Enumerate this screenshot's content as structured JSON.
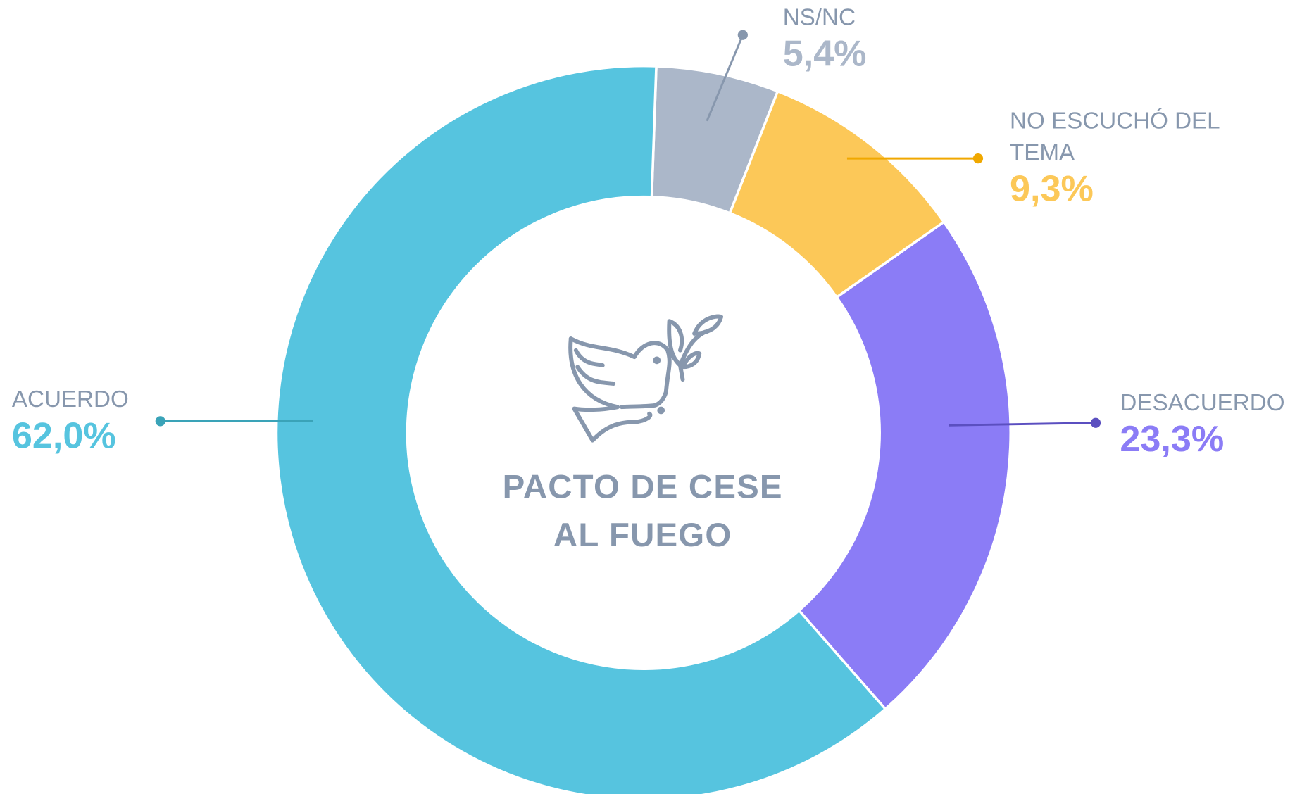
{
  "chart_data": {
    "type": "donut",
    "title": "PACTO DE CESE AL FUEGO",
    "categories": [
      "NS/NC",
      "NO ESCUCHÓ DEL TEMA",
      "DESACUERDO",
      "ACUERDO"
    ],
    "values": [
      5.4,
      9.3,
      23.3,
      62.0
    ],
    "value_labels": [
      "5,4%",
      "9,3%",
      "23,3%",
      "62,0%"
    ],
    "colors": [
      "#abb7c9",
      "#fcc858",
      "#8b7cf6",
      "#56c4df"
    ]
  }
}
